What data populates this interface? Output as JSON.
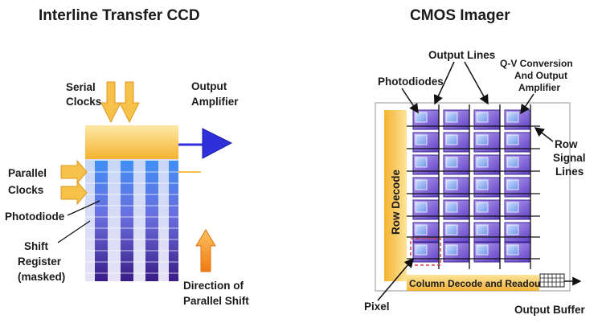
{
  "ccd": {
    "title": "Interline Transfer CCD",
    "labels": {
      "serial_clocks_1": "Serial",
      "serial_clocks_2": "Clocks",
      "output_amplifier_1": "Output",
      "output_amplifier_2": "Amplifier",
      "parallel_clocks_1": "Parallel",
      "parallel_clocks_2": "Clocks",
      "photodiode": "Photodiode",
      "shift_register_1": "Shift",
      "shift_register_2": "Register",
      "shift_register_3": "(masked)",
      "direction_1": "Direction of",
      "direction_2": "Parallel Shift"
    }
  },
  "cmos": {
    "title": "CMOS Imager",
    "labels": {
      "output_lines": "Output Lines",
      "photodiodes": "Photodiodes",
      "qv_1": "Q-V Conversion",
      "qv_2": "And Output",
      "qv_3": "Amplifier",
      "row_signal_1": "Row",
      "row_signal_2": "Signal",
      "row_signal_3": "Lines",
      "row_decode": "Row Decode",
      "column_decode": "Column Decode and Readout",
      "pixel": "Pixel",
      "output_buffer": "Output Buffer"
    }
  },
  "colors": {
    "gold": "#f5b330",
    "gold_light": "#fde49a",
    "blue_arrow": "#3030e0",
    "purple_dark": "#4a2a8a",
    "pixel_purple": "#7d5fd8",
    "pixel_blue": "#8fb8f0",
    "pixel_red_outline": "#d04040"
  }
}
